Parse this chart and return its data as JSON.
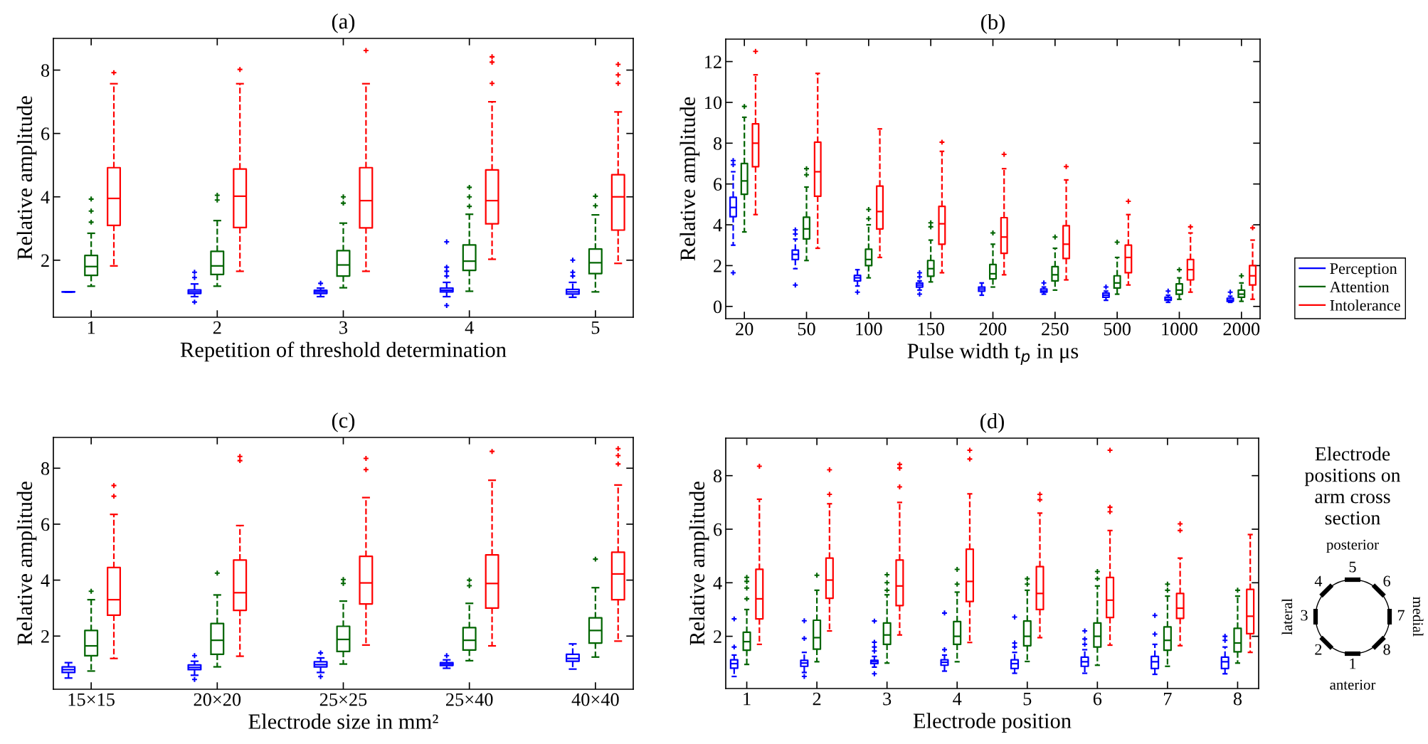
{
  "chart_data": [
    {
      "type": "box",
      "title": "(a)",
      "xlabel": "Repetition of threshold determination",
      "ylabel": "Relative amplitude",
      "categories": [
        "1",
        "2",
        "3",
        "4",
        "5"
      ],
      "ylim": [
        0.2,
        9.0
      ],
      "yticks": [
        2,
        4,
        6,
        8
      ],
      "marker": "cross",
      "line_style": "dashed",
      "series": [
        {
          "color": "#0000ff",
          "boxes": [
            {
              "low": 1.0,
              "q1": 1.0,
              "median": 1.0,
              "q3": 1.0,
              "high": 1.0
            },
            {
              "low": 0.85,
              "q1": 0.95,
              "median": 1.0,
              "q3": 1.06,
              "high": 1.25,
              "outliers": [
                1.45,
                1.62,
                0.68
              ]
            },
            {
              "low": 0.85,
              "q1": 0.95,
              "median": 1.0,
              "q3": 1.05,
              "high": 1.12,
              "outliers": [
                1.27
              ]
            },
            {
              "low": 0.85,
              "q1": 1.0,
              "median": 1.05,
              "q3": 1.12,
              "high": 1.3,
              "outliers": [
                1.5,
                1.65,
                1.78,
                2.58,
                0.57
              ]
            },
            {
              "low": 0.83,
              "q1": 0.93,
              "median": 1.0,
              "q3": 1.08,
              "high": 1.3,
              "outliers": [
                1.5,
                1.62,
                2.0
              ]
            }
          ]
        },
        {
          "color": "#006400",
          "boxes": [
            {
              "low": 1.18,
              "q1": 1.52,
              "median": 1.8,
              "q3": 2.15,
              "high": 2.85,
              "outliers": [
                3.2,
                3.55,
                3.93
              ]
            },
            {
              "low": 1.18,
              "q1": 1.55,
              "median": 1.82,
              "q3": 2.28,
              "high": 3.25,
              "outliers": [
                3.9,
                4.05
              ]
            },
            {
              "low": 1.13,
              "q1": 1.5,
              "median": 1.85,
              "q3": 2.3,
              "high": 3.17,
              "outliers": [
                3.8,
                4.0
              ]
            },
            {
              "low": 1.02,
              "q1": 1.68,
              "median": 1.97,
              "q3": 2.48,
              "high": 3.45,
              "outliers": [
                3.7,
                4.0,
                4.3
              ]
            },
            {
              "low": 1.0,
              "q1": 1.58,
              "median": 1.92,
              "q3": 2.35,
              "high": 3.43,
              "outliers": [
                3.72,
                4.02
              ]
            }
          ]
        },
        {
          "color": "#ff0000",
          "boxes": [
            {
              "low": 1.82,
              "q1": 3.1,
              "median": 3.95,
              "q3": 4.92,
              "high": 7.57,
              "outliers": [
                7.92
              ]
            },
            {
              "low": 1.65,
              "q1": 3.03,
              "median": 4.02,
              "q3": 4.88,
              "high": 7.57,
              "outliers": [
                8.02
              ]
            },
            {
              "low": 1.65,
              "q1": 3.02,
              "median": 3.88,
              "q3": 4.92,
              "high": 7.57,
              "outliers": [
                8.62
              ]
            },
            {
              "low": 2.03,
              "q1": 3.15,
              "median": 3.88,
              "q3": 4.85,
              "high": 7.0,
              "outliers": [
                7.58,
                8.25,
                8.42
              ]
            },
            {
              "low": 1.9,
              "q1": 2.95,
              "median": 4.0,
              "q3": 4.7,
              "high": 6.68,
              "outliers": [
                7.58,
                7.85,
                8.18
              ]
            }
          ]
        }
      ]
    },
    {
      "type": "box",
      "title": "(b)",
      "xlabel": "Pulse width t$_{p}$ in μs",
      "ylabel": "Relative amplitude",
      "categories": [
        "20",
        "50",
        "100",
        "150",
        "200",
        "250",
        "500",
        "1000",
        "2000"
      ],
      "ylim": [
        -0.6,
        13.1
      ],
      "yticks": [
        0,
        2,
        4,
        6,
        8,
        10,
        12
      ],
      "marker": "cross",
      "line_style": "dashed",
      "legend": "right",
      "series": [
        {
          "name": "Perception",
          "color": "#0000ff",
          "boxes": [
            {
              "low": 3.0,
              "q1": 4.4,
              "median": 4.85,
              "q3": 5.35,
              "high": 6.6,
              "outliers": [
                6.95,
                7.15,
                1.65
              ]
            },
            {
              "low": 1.85,
              "q1": 2.3,
              "median": 2.55,
              "q3": 2.76,
              "high": 3.3,
              "outliers": [
                3.55,
                3.75,
                1.05
              ]
            },
            {
              "low": 1.0,
              "q1": 1.25,
              "median": 1.4,
              "q3": 1.52,
              "high": 1.8,
              "outliers": [
                0.7
              ]
            },
            {
              "low": 0.8,
              "q1": 0.95,
              "median": 1.05,
              "q3": 1.15,
              "high": 1.25,
              "outliers": [
                1.45,
                1.65,
                0.6
              ]
            },
            {
              "low": 0.55,
              "q1": 0.75,
              "median": 0.85,
              "q3": 0.95,
              "high": 1.15
            },
            {
              "low": 0.6,
              "q1": 0.7,
              "median": 0.75,
              "q3": 0.85,
              "high": 0.95,
              "outliers": [
                1.15
              ]
            },
            {
              "low": 0.3,
              "q1": 0.45,
              "median": 0.55,
              "q3": 0.65,
              "high": 0.75,
              "outliers": [
                0.95
              ]
            },
            {
              "low": 0.2,
              "q1": 0.3,
              "median": 0.35,
              "q3": 0.45,
              "high": 0.55,
              "outliers": [
                0.75
              ]
            },
            {
              "low": 0.2,
              "q1": 0.25,
              "median": 0.3,
              "q3": 0.4,
              "high": 0.5,
              "outliers": [
                0.7
              ]
            }
          ]
        },
        {
          "name": "Attention",
          "color": "#006400",
          "boxes": [
            {
              "low": 3.65,
              "q1": 5.5,
              "median": 6.15,
              "q3": 7.0,
              "high": 9.27,
              "outliers": [
                9.8
              ]
            },
            {
              "low": 2.25,
              "q1": 3.31,
              "median": 3.8,
              "q3": 4.37,
              "high": 5.85,
              "outliers": [
                6.45,
                6.75
              ]
            },
            {
              "low": 1.4,
              "q1": 2.0,
              "median": 2.3,
              "q3": 2.8,
              "high": 4.0,
              "outliers": [
                4.3,
                4.75
              ]
            },
            {
              "low": 1.2,
              "q1": 1.48,
              "median": 1.85,
              "q3": 2.25,
              "high": 3.25,
              "outliers": [
                3.9,
                4.1
              ]
            },
            {
              "low": 0.95,
              "q1": 1.35,
              "median": 1.6,
              "q3": 2.05,
              "high": 3.05,
              "outliers": [
                3.6
              ]
            },
            {
              "low": 0.8,
              "q1": 1.25,
              "median": 1.55,
              "q3": 1.95,
              "high": 2.85,
              "outliers": [
                3.4
              ]
            },
            {
              "low": 0.6,
              "q1": 0.9,
              "median": 1.15,
              "q3": 1.5,
              "high": 2.4,
              "outliers": [
                3.15
              ]
            },
            {
              "low": 0.35,
              "q1": 0.6,
              "median": 0.8,
              "q3": 1.1,
              "high": 1.4,
              "outliers": [
                1.8
              ]
            },
            {
              "low": 0.25,
              "q1": 0.45,
              "median": 0.6,
              "q3": 0.8,
              "high": 1.15,
              "outliers": [
                1.5
              ]
            }
          ]
        },
        {
          "name": "Intolerance",
          "color": "#ff0000",
          "boxes": [
            {
              "low": 4.5,
              "q1": 6.85,
              "median": 8.0,
              "q3": 8.95,
              "high": 11.35,
              "outliers": [
                12.5
              ]
            },
            {
              "low": 2.85,
              "q1": 5.4,
              "median": 6.6,
              "q3": 8.05,
              "high": 11.42
            },
            {
              "low": 2.4,
              "q1": 3.8,
              "median": 4.65,
              "q3": 5.9,
              "high": 8.7
            },
            {
              "low": 1.65,
              "q1": 3.05,
              "median": 4.05,
              "q3": 4.9,
              "high": 7.6,
              "outliers": [
                8.05
              ]
            },
            {
              "low": 1.55,
              "q1": 2.6,
              "median": 3.4,
              "q3": 4.35,
              "high": 6.75,
              "outliers": [
                7.45
              ]
            },
            {
              "low": 1.3,
              "q1": 2.35,
              "median": 3.05,
              "q3": 3.95,
              "high": 6.2,
              "outliers": [
                6.85
              ]
            },
            {
              "low": 1.05,
              "q1": 1.65,
              "median": 2.4,
              "q3": 3.0,
              "high": 4.5,
              "outliers": [
                5.15
              ]
            },
            {
              "low": 0.7,
              "q1": 1.3,
              "median": 1.8,
              "q3": 2.3,
              "high": 3.6,
              "outliers": [
                3.9
              ]
            },
            {
              "low": 0.35,
              "q1": 1.05,
              "median": 1.5,
              "q3": 2.0,
              "high": 3.25,
              "outliers": [
                3.85
              ]
            }
          ]
        }
      ]
    },
    {
      "type": "box",
      "title": "(c)",
      "xlabel": "Electrode size in mm²",
      "ylabel": "Relative amplitude",
      "categories": [
        "15×15",
        "20×20",
        "25×25",
        "25×40",
        "40×40"
      ],
      "ylim": [
        0.1,
        9.1
      ],
      "yticks": [
        2,
        4,
        6,
        8
      ],
      "marker": "cross",
      "line_style": "dashed",
      "series": [
        {
          "color": "#0000ff",
          "boxes": [
            {
              "low": 0.5,
              "q1": 0.7,
              "median": 0.8,
              "q3": 0.9,
              "high": 1.05
            },
            {
              "low": 0.6,
              "q1": 0.8,
              "median": 0.88,
              "q3": 0.97,
              "high": 1.1,
              "outliers": [
                1.3,
                0.45
              ]
            },
            {
              "low": 0.7,
              "q1": 0.9,
              "median": 0.98,
              "q3": 1.08,
              "high": 1.22,
              "outliers": [
                1.4,
                0.55
              ]
            },
            {
              "low": 0.85,
              "q1": 0.95,
              "median": 1.0,
              "q3": 1.05,
              "high": 1.15,
              "outliers": [
                1.3
              ]
            },
            {
              "low": 0.82,
              "q1": 1.1,
              "median": 1.2,
              "q3": 1.35,
              "high": 1.72
            }
          ]
        },
        {
          "color": "#006400",
          "boxes": [
            {
              "low": 0.75,
              "q1": 1.3,
              "median": 1.65,
              "q3": 2.2,
              "high": 3.3,
              "outliers": [
                3.6
              ]
            },
            {
              "low": 0.9,
              "q1": 1.35,
              "median": 1.85,
              "q3": 2.45,
              "high": 3.47,
              "outliers": [
                4.25
              ]
            },
            {
              "low": 1.0,
              "q1": 1.45,
              "median": 1.88,
              "q3": 2.35,
              "high": 3.25,
              "outliers": [
                3.88,
                4.02
              ]
            },
            {
              "low": 1.12,
              "q1": 1.5,
              "median": 1.85,
              "q3": 2.3,
              "high": 3.17,
              "outliers": [
                3.8,
                4.0
              ]
            },
            {
              "low": 1.25,
              "q1": 1.75,
              "median": 2.2,
              "q3": 2.65,
              "high": 3.73,
              "outliers": [
                4.75
              ]
            }
          ]
        },
        {
          "color": "#ff0000",
          "boxes": [
            {
              "low": 1.2,
              "q1": 2.75,
              "median": 3.3,
              "q3": 4.45,
              "high": 6.35,
              "outliers": [
                7.0,
                7.38
              ]
            },
            {
              "low": 1.28,
              "q1": 2.92,
              "median": 3.55,
              "q3": 4.72,
              "high": 5.95,
              "outliers": [
                8.27,
                8.42
              ]
            },
            {
              "low": 1.68,
              "q1": 3.15,
              "median": 3.9,
              "q3": 4.85,
              "high": 6.95,
              "outliers": [
                7.95,
                8.35
              ]
            },
            {
              "low": 1.65,
              "q1": 3.0,
              "median": 3.88,
              "q3": 4.9,
              "high": 7.57,
              "outliers": [
                8.6
              ]
            },
            {
              "low": 1.82,
              "q1": 3.3,
              "median": 4.22,
              "q3": 5.0,
              "high": 7.4,
              "outliers": [
                8.15,
                8.45,
                8.7
              ]
            }
          ]
        }
      ]
    },
    {
      "type": "box",
      "title": "(d)",
      "xlabel": "Electrode position",
      "ylabel": "Relative amplitude",
      "categories": [
        "1",
        "2",
        "3",
        "4",
        "5",
        "6",
        "7",
        "8"
      ],
      "ylim": [
        0.05,
        9.4
      ],
      "yticks": [
        2,
        4,
        6,
        8
      ],
      "marker": "cross",
      "line_style": "dashed",
      "series": [
        {
          "color": "#0000ff",
          "boxes": [
            {
              "low": 0.5,
              "q1": 0.81,
              "median": 0.98,
              "q3": 1.12,
              "high": 1.3,
              "outliers": [
                1.6,
                2.65
              ]
            },
            {
              "low": 0.65,
              "q1": 0.88,
              "median": 1.0,
              "q3": 1.1,
              "high": 1.4,
              "outliers": [
                1.92,
                2.58,
                0.5
              ]
            },
            {
              "low": 0.85,
              "q1": 0.98,
              "median": 1.05,
              "q3": 1.1,
              "high": 1.25,
              "outliers": [
                1.45,
                1.6,
                1.78,
                2.57,
                0.6
              ]
            },
            {
              "low": 0.7,
              "q1": 0.92,
              "median": 1.03,
              "q3": 1.12,
              "high": 1.3,
              "outliers": [
                1.5,
                2.87
              ]
            },
            {
              "low": 0.62,
              "q1": 0.8,
              "median": 0.98,
              "q3": 1.12,
              "high": 1.4,
              "outliers": [
                1.6,
                1.75,
                2.72
              ]
            },
            {
              "low": 0.62,
              "q1": 0.88,
              "median": 1.05,
              "q3": 1.22,
              "high": 1.5,
              "outliers": [
                1.7,
                1.9,
                2.2
              ]
            },
            {
              "low": 0.58,
              "q1": 0.8,
              "median": 1.05,
              "q3": 1.25,
              "high": 1.7,
              "outliers": [
                2.08,
                2.78
              ]
            },
            {
              "low": 0.6,
              "q1": 0.8,
              "median": 1.05,
              "q3": 1.22,
              "high": 1.6,
              "outliers": [
                1.85,
                2.0
              ]
            }
          ]
        },
        {
          "color": "#006400",
          "boxes": [
            {
              "low": 0.95,
              "q1": 1.48,
              "median": 1.8,
              "q3": 2.15,
              "high": 3.0,
              "outliers": [
                3.4,
                3.8,
                4.05,
                4.2
              ]
            },
            {
              "low": 1.05,
              "q1": 1.52,
              "median": 1.95,
              "q3": 2.6,
              "high": 3.72,
              "outliers": [
                4.28
              ]
            },
            {
              "low": 1.0,
              "q1": 1.7,
              "median": 2.05,
              "q3": 2.5,
              "high": 3.55,
              "outliers": [
                3.72,
                4.0,
                4.3
              ]
            },
            {
              "low": 1.05,
              "q1": 1.7,
              "median": 2.0,
              "q3": 2.55,
              "high": 3.65,
              "outliers": [
                3.95,
                4.5
              ]
            },
            {
              "low": 1.06,
              "q1": 1.65,
              "median": 2.0,
              "q3": 2.57,
              "high": 3.72,
              "outliers": [
                3.95,
                4.15
              ]
            },
            {
              "low": 0.92,
              "q1": 1.6,
              "median": 2.0,
              "q3": 2.5,
              "high": 3.88,
              "outliers": [
                4.15,
                4.42
              ]
            },
            {
              "low": 0.88,
              "q1": 1.48,
              "median": 1.85,
              "q3": 2.35,
              "high": 3.5,
              "outliers": [
                3.72,
                3.95
              ]
            },
            {
              "low": 1.0,
              "q1": 1.42,
              "median": 1.75,
              "q3": 2.3,
              "high": 3.5,
              "outliers": [
                3.72
              ]
            }
          ]
        },
        {
          "color": "#ff0000",
          "boxes": [
            {
              "low": 1.7,
              "q1": 2.65,
              "median": 3.4,
              "q3": 4.5,
              "high": 7.12,
              "outliers": [
                8.35
              ]
            },
            {
              "low": 2.2,
              "q1": 3.42,
              "median": 4.1,
              "q3": 4.92,
              "high": 6.95,
              "outliers": [
                7.3,
                8.22
              ]
            },
            {
              "low": 2.05,
              "q1": 3.15,
              "median": 3.88,
              "q3": 4.85,
              "high": 7.0,
              "outliers": [
                7.58,
                8.28,
                8.42
              ]
            },
            {
              "low": 1.77,
              "q1": 3.3,
              "median": 4.05,
              "q3": 5.25,
              "high": 7.32,
              "outliers": [
                8.62,
                8.95
              ]
            },
            {
              "low": 1.95,
              "q1": 3.0,
              "median": 3.6,
              "q3": 4.6,
              "high": 6.6,
              "outliers": [
                7.1,
                7.3
              ]
            },
            {
              "low": 1.67,
              "q1": 2.7,
              "median": 3.35,
              "q3": 4.2,
              "high": 5.95,
              "outliers": [
                6.65,
                6.82,
                8.95
              ]
            },
            {
              "low": 1.65,
              "q1": 2.67,
              "median": 3.05,
              "q3": 3.6,
              "high": 4.92,
              "outliers": [
                5.95,
                6.2
              ]
            },
            {
              "low": 1.4,
              "q1": 2.1,
              "median": 2.75,
              "q3": 3.75,
              "high": 5.8
            }
          ]
        }
      ]
    },
    {
      "type": "other",
      "title": "Electrode\npositions on\narm cross\nsection",
      "annotations": [
        "posterior",
        "anterior",
        "lateral",
        "medial",
        "1",
        "2",
        "3",
        "4",
        "5",
        "6",
        "7",
        "8"
      ]
    }
  ]
}
